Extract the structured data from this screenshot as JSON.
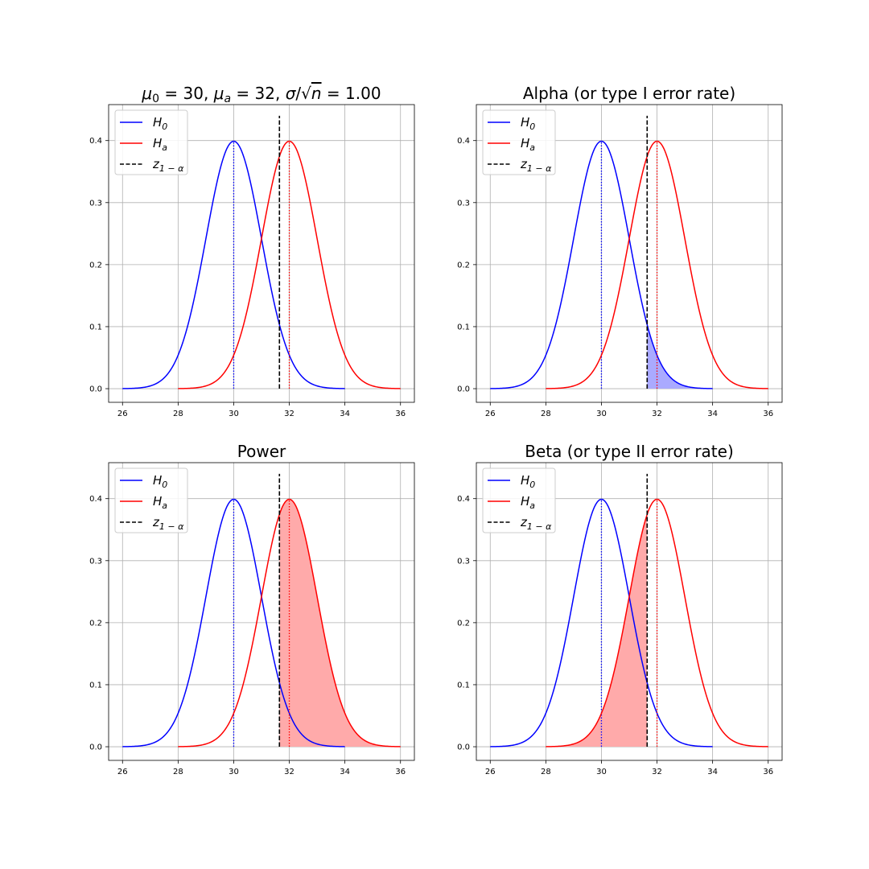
{
  "figure": {
    "background": "#ffffff",
    "grid": true,
    "legend_placement": "top-left"
  },
  "legend_entries": [
    {
      "base": "H",
      "sub": "0",
      "color": "#0000ff",
      "dash": "solid"
    },
    {
      "base": "H",
      "sub": "a",
      "color": "#ff0000",
      "dash": "solid"
    },
    {
      "base": "z",
      "sub": "1 − α",
      "color": "#000000",
      "dash": "dashed"
    }
  ],
  "colors": {
    "h0": "#0000ff",
    "ha": "#ff0000",
    "critical": "#000000",
    "alpha_fill": "#aaaaff",
    "power_fill": "#ffaaaa",
    "beta_fill": "#ffaaaa",
    "grid": "#b0b0b0"
  },
  "chart_data": [
    {
      "type": "line",
      "panel": "top-left",
      "title_parts": [
        {
          "t": "μ",
          "italic": true
        },
        {
          "t": "0",
          "sub": true,
          "italic": false
        },
        {
          "t": " = 30, ",
          "italic": false
        },
        {
          "t": "μ",
          "italic": true
        },
        {
          "t": "a",
          "sub": true,
          "italic": true
        },
        {
          "t": " = 32, ",
          "italic": false
        },
        {
          "t": "σ",
          "italic": true
        },
        {
          "t": "/√",
          "italic": false
        },
        {
          "t": "n",
          "italic": true,
          "overline": true
        },
        {
          "t": " = 1.00",
          "italic": false
        }
      ],
      "xlim": [
        25.5,
        36.5
      ],
      "ylim": [
        -0.022,
        0.458
      ],
      "xticks": [
        "26",
        "28",
        "30",
        "32",
        "34",
        "36"
      ],
      "yticks": [
        "0.0",
        "0.1",
        "0.2",
        "0.3",
        "0.4"
      ],
      "series": [
        {
          "name": "H0",
          "mean": 30,
          "sd": 1,
          "x_range": [
            26,
            34
          ]
        },
        {
          "name": "Ha",
          "mean": 32,
          "sd": 1,
          "x_range": [
            28,
            36
          ]
        }
      ],
      "critical_value": 31.645,
      "critical_line_ylim": [
        0,
        0.44
      ],
      "shade": null
    },
    {
      "type": "line",
      "panel": "top-right",
      "title_parts": [
        {
          "t": "Alpha (or type I error rate)",
          "italic": false
        }
      ],
      "xlim": [
        25.5,
        36.5
      ],
      "ylim": [
        -0.022,
        0.458
      ],
      "xticks": [
        "26",
        "28",
        "30",
        "32",
        "34",
        "36"
      ],
      "yticks": [
        "0.0",
        "0.1",
        "0.2",
        "0.3",
        "0.4"
      ],
      "series": [
        {
          "name": "H0",
          "mean": 30,
          "sd": 1,
          "x_range": [
            26,
            34
          ]
        },
        {
          "name": "Ha",
          "mean": 32,
          "sd": 1,
          "x_range": [
            28,
            36
          ]
        }
      ],
      "critical_value": 31.645,
      "critical_line_ylim": [
        0,
        0.44
      ],
      "shade": {
        "curve": "H0",
        "from": 31.645,
        "to": 34,
        "color_key": "alpha_fill"
      }
    },
    {
      "type": "line",
      "panel": "bottom-left",
      "title_parts": [
        {
          "t": "Power",
          "italic": false
        }
      ],
      "xlim": [
        25.5,
        36.5
      ],
      "ylim": [
        -0.022,
        0.458
      ],
      "xticks": [
        "26",
        "28",
        "30",
        "32",
        "34",
        "36"
      ],
      "yticks": [
        "0.0",
        "0.1",
        "0.2",
        "0.3",
        "0.4"
      ],
      "series": [
        {
          "name": "H0",
          "mean": 30,
          "sd": 1,
          "x_range": [
            26,
            34
          ]
        },
        {
          "name": "Ha",
          "mean": 32,
          "sd": 1,
          "x_range": [
            28,
            36
          ]
        }
      ],
      "critical_value": 31.645,
      "critical_line_ylim": [
        0,
        0.44
      ],
      "shade": {
        "curve": "Ha",
        "from": 31.645,
        "to": 36,
        "color_key": "power_fill"
      }
    },
    {
      "type": "line",
      "panel": "bottom-right",
      "title_parts": [
        {
          "t": "Beta (or type II error rate)",
          "italic": false
        }
      ],
      "xlim": [
        25.5,
        36.5
      ],
      "ylim": [
        -0.022,
        0.458
      ],
      "xticks": [
        "26",
        "28",
        "30",
        "32",
        "34",
        "36"
      ],
      "yticks": [
        "0.0",
        "0.1",
        "0.2",
        "0.3",
        "0.4"
      ],
      "series": [
        {
          "name": "H0",
          "mean": 30,
          "sd": 1,
          "x_range": [
            26,
            34
          ]
        },
        {
          "name": "Ha",
          "mean": 32,
          "sd": 1,
          "x_range": [
            28,
            36
          ]
        }
      ],
      "critical_value": 31.645,
      "critical_line_ylim": [
        0,
        0.44
      ],
      "shade": {
        "curve": "Ha",
        "from": 28,
        "to": 31.645,
        "color_key": "beta_fill"
      }
    }
  ]
}
